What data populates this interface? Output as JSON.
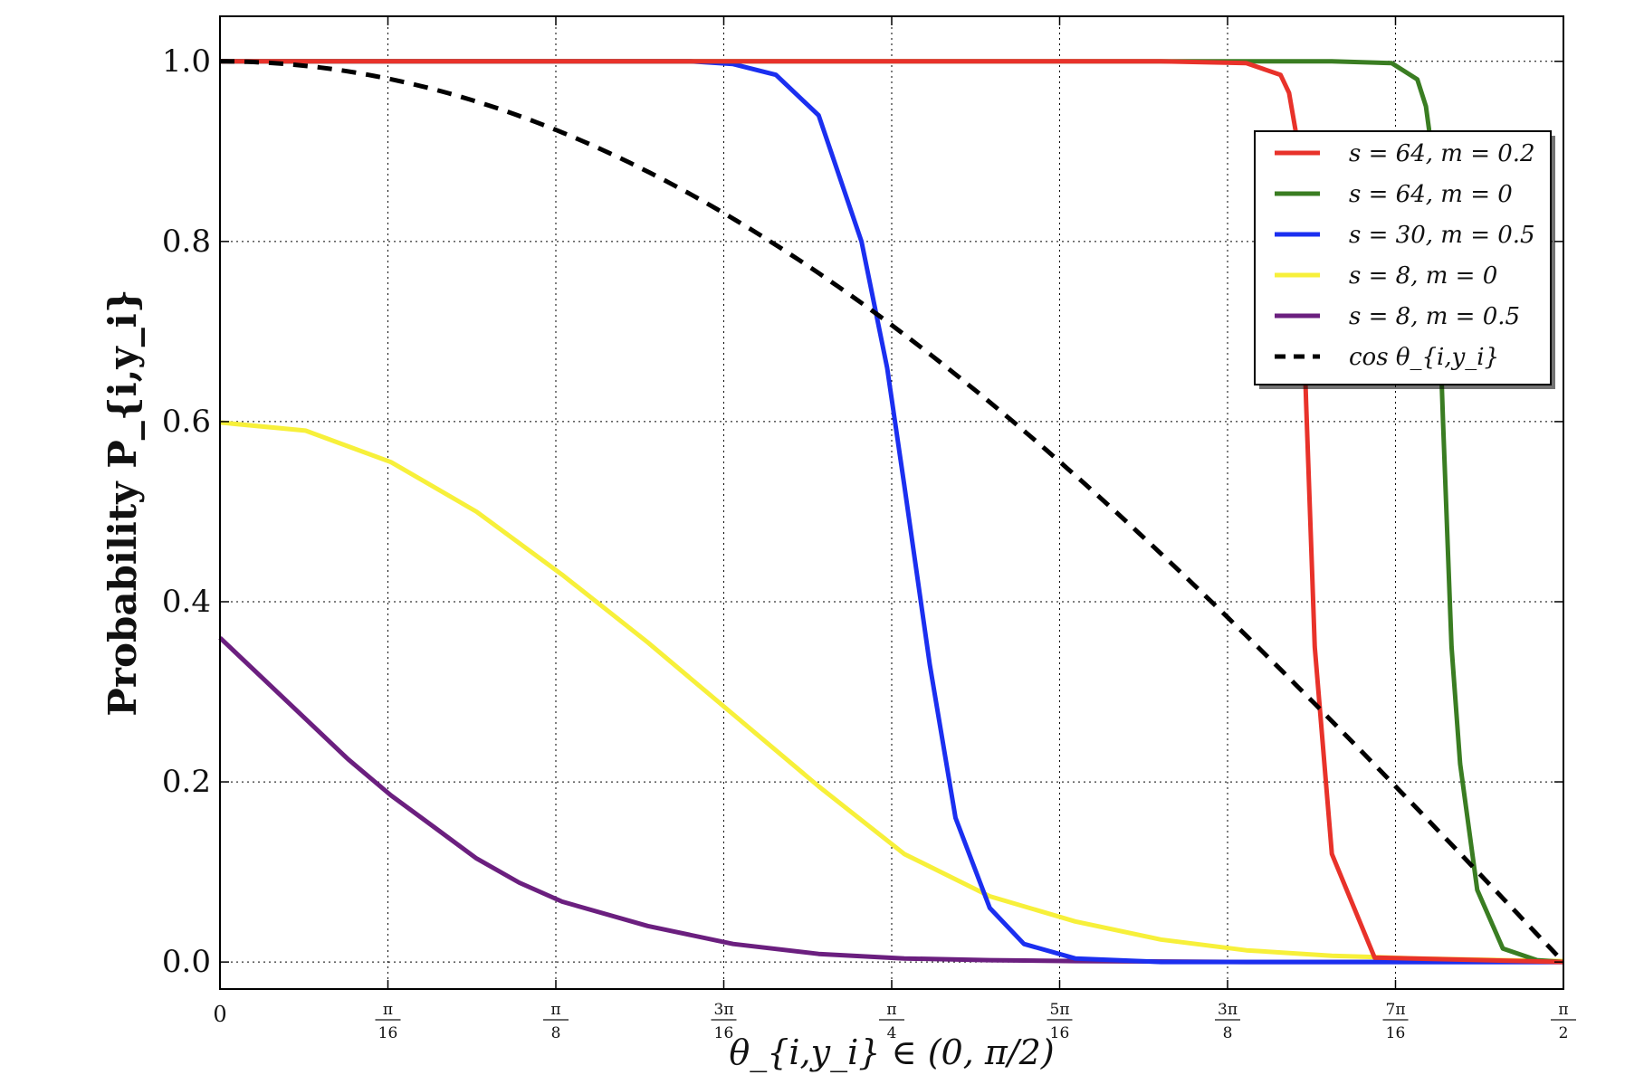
{
  "chart_data": {
    "type": "line",
    "title": "",
    "xlabel": "θ_{i,y_i} ∈ (0, π/2)",
    "ylabel": "Probability P_{i,y_i}",
    "xlim": [
      0,
      1.5708
    ],
    "ylim": [
      -0.03,
      1.05
    ],
    "grid": true,
    "legend_position": "upper-right",
    "x_ticks": [
      {
        "value": 0,
        "label": "0"
      },
      {
        "value": 0.19635,
        "label": "π/16"
      },
      {
        "value": 0.3927,
        "label": "π/8"
      },
      {
        "value": 0.58905,
        "label": "3π/16"
      },
      {
        "value": 0.7854,
        "label": "π/4"
      },
      {
        "value": 0.98175,
        "label": "5π/16"
      },
      {
        "value": 1.1781,
        "label": "3π/8"
      },
      {
        "value": 1.37445,
        "label": "7π/16"
      },
      {
        "value": 1.5708,
        "label": "π/2"
      }
    ],
    "y_ticks": [
      {
        "value": 0.0,
        "label": "0.0"
      },
      {
        "value": 0.2,
        "label": "0.2"
      },
      {
        "value": 0.4,
        "label": "0.4"
      },
      {
        "value": 0.6,
        "label": "0.6"
      },
      {
        "value": 0.8,
        "label": "0.8"
      },
      {
        "value": 1.0,
        "label": "1.0"
      }
    ],
    "series": [
      {
        "name": "s = 64, m = 0.2",
        "color": "#e8322a",
        "dashed": false,
        "x": [
          0,
          1.1,
          1.2,
          1.24,
          1.25,
          1.26,
          1.27,
          1.28,
          1.3,
          1.35,
          1.5708
        ],
        "y": [
          1.0,
          1.0,
          0.998,
          0.985,
          0.965,
          0.91,
          0.62,
          0.35,
          0.12,
          0.005,
          0.0
        ]
      },
      {
        "name": "s = 64, m = 0",
        "color": "#3a7d22",
        "dashed": false,
        "x": [
          0,
          1.3,
          1.37,
          1.4,
          1.41,
          1.42,
          1.43,
          1.44,
          1.45,
          1.47,
          1.5,
          1.54,
          1.5708
        ],
        "y": [
          1.0,
          1.0,
          0.998,
          0.98,
          0.95,
          0.88,
          0.6,
          0.35,
          0.22,
          0.08,
          0.015,
          0.002,
          0.0
        ]
      },
      {
        "name": "s = 30, m = 0.5",
        "color": "#1b2ff0",
        "dashed": false,
        "x": [
          0,
          0.55,
          0.6,
          0.65,
          0.7,
          0.75,
          0.78,
          0.8,
          0.83,
          0.86,
          0.9,
          0.94,
          1.0,
          1.1,
          1.5708
        ],
        "y": [
          1.0,
          1.0,
          0.997,
          0.985,
          0.94,
          0.8,
          0.66,
          0.53,
          0.33,
          0.16,
          0.06,
          0.02,
          0.004,
          0.0,
          0.0
        ]
      },
      {
        "name": "s = 8, m = 0",
        "color": "#f7f03a",
        "dashed": false,
        "x": [
          0,
          0.1,
          0.2,
          0.3,
          0.4,
          0.5,
          0.6,
          0.7,
          0.8,
          0.9,
          1.0,
          1.1,
          1.2,
          1.3,
          1.4,
          1.5,
          1.5708
        ],
        "y": [
          0.599,
          0.59,
          0.555,
          0.5,
          0.43,
          0.355,
          0.275,
          0.195,
          0.12,
          0.073,
          0.045,
          0.025,
          0.013,
          0.007,
          0.004,
          0.002,
          0.001
        ]
      },
      {
        "name": "s = 8, m = 0.5",
        "color": "#6b1f7f",
        "dashed": false,
        "x": [
          0,
          0.05,
          0.1,
          0.15,
          0.2,
          0.25,
          0.3,
          0.35,
          0.4,
          0.5,
          0.6,
          0.7,
          0.8,
          0.9,
          1.0,
          1.2,
          1.5708
        ],
        "y": [
          0.36,
          0.315,
          0.27,
          0.225,
          0.185,
          0.15,
          0.115,
          0.088,
          0.067,
          0.04,
          0.02,
          0.009,
          0.004,
          0.002,
          0.001,
          0.0,
          0.0
        ]
      },
      {
        "name": "cos θ_{i,y_i}",
        "color": "#000000",
        "dashed": true,
        "x": "cos",
        "y": "cos"
      }
    ]
  }
}
